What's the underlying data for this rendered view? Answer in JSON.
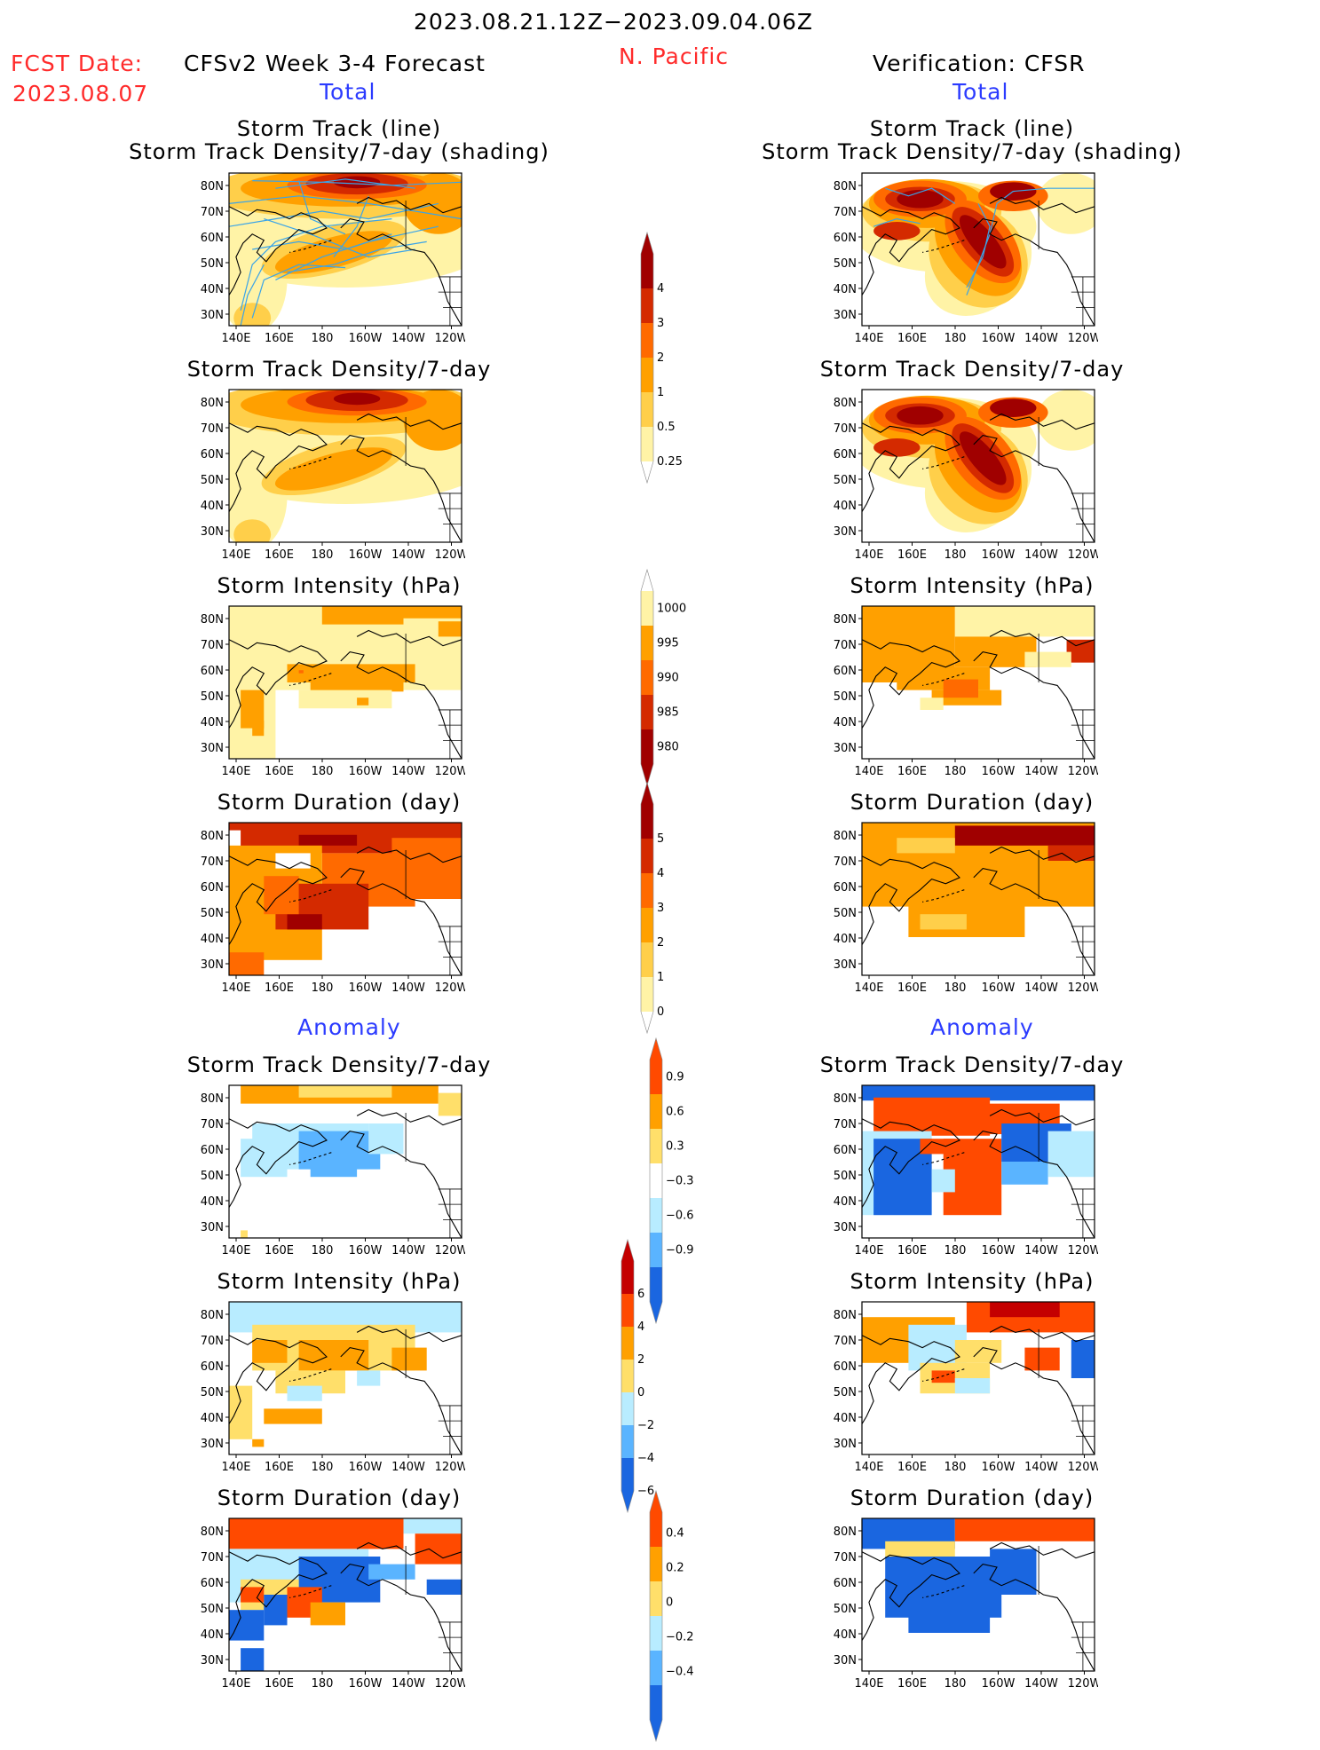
{
  "header": {
    "date_range": "2023.08.21.12Z−2023.09.04.06Z",
    "fcst_label": "FCST Date:",
    "fcst_date": "2023.08.07",
    "model_title": "CFSv2 Week 3-4 Forecast",
    "region": "N. Pacific",
    "verification": "Verification: CFSR",
    "left_total": "Total",
    "right_total": "Total",
    "left_anomaly": "Anomaly",
    "right_anomaly": "Anomaly"
  },
  "axes": {
    "lat_labels": [
      "80N",
      "70N",
      "60N",
      "50N",
      "40N",
      "30N"
    ],
    "lon_labels": [
      "140E",
      "160E",
      "180",
      "160W",
      "140W",
      "120W"
    ]
  },
  "titles": {
    "track_line": "Storm Track (line)",
    "track_density_shading": "Storm Track Density/7-day (shading)",
    "track_density": "Storm Track Density/7-day",
    "intensity": "Storm Intensity (hPa)",
    "duration": "Storm Duration (day)"
  },
  "colorbars": {
    "density": {
      "labels": [
        "4",
        "3",
        "2",
        "1",
        "0.5",
        "0.25"
      ],
      "colors": [
        "#a00000",
        "#d42a00",
        "#ff6a00",
        "#ffa000",
        "#ffcf4a",
        "#fff3a6"
      ]
    },
    "intensity": {
      "labels": [
        "1000",
        "995",
        "990",
        "985",
        "980"
      ],
      "colors": [
        "#fff3a6",
        "#ffa000",
        "#ff6a00",
        "#d42a00",
        "#a00000"
      ]
    },
    "duration": {
      "labels": [
        "5",
        "4",
        "3",
        "2",
        "1",
        "0"
      ],
      "colors": [
        "#a00000",
        "#d42a00",
        "#ff6a00",
        "#ffa000",
        "#ffcf4a",
        "#fff3a6"
      ]
    },
    "density_anom": {
      "labels": [
        "0.9",
        "0.6",
        "0.3",
        "−0.3",
        "−0.6",
        "−0.9"
      ],
      "colors": [
        "#ff4a00",
        "#ffa000",
        "#ffdf6a",
        "#ffffff",
        "#b8ecff",
        "#5ab4ff",
        "#1a66e0"
      ]
    },
    "intensity_anom": {
      "labels": [
        "6",
        "4",
        "2",
        "0",
        "−2",
        "−4",
        "−6"
      ],
      "colors": [
        "#c40000",
        "#ff4a00",
        "#ffa000",
        "#ffdf6a",
        "#b8ecff",
        "#5ab4ff",
        "#1a66e0"
      ]
    },
    "duration_anom": {
      "labels": [
        "0.4",
        "0.2",
        "0",
        "−0.2",
        "−0.4"
      ],
      "colors": [
        "#ff4a00",
        "#ffa000",
        "#ffdf6a",
        "#b8ecff",
        "#5ab4ff",
        "#1a66e0"
      ]
    }
  }
}
